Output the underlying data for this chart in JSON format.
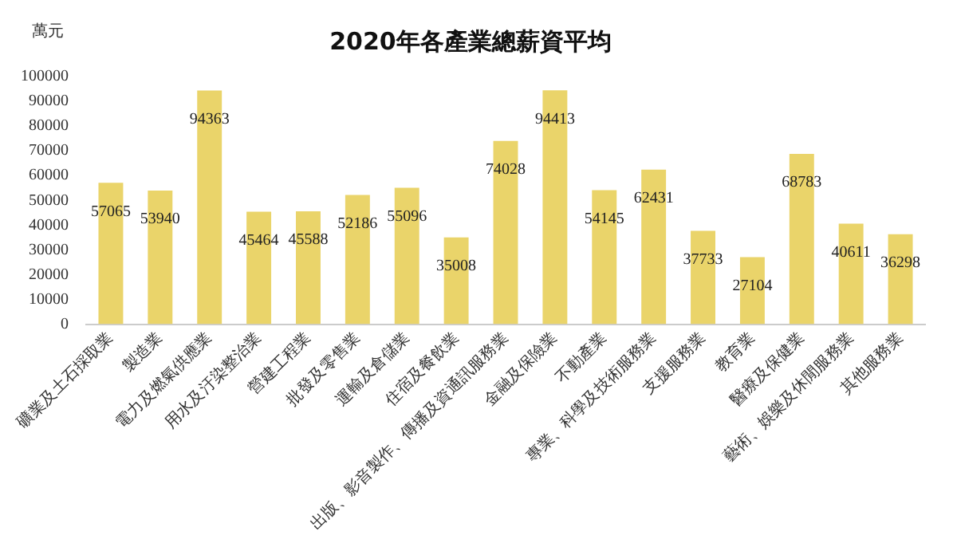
{
  "chart_data": {
    "type": "bar",
    "title": "2020年各產業總薪資平均",
    "ylabel": "萬元",
    "categories": [
      "礦業及土石採取業",
      "製造業",
      "電力及燃氣供應業",
      "用水及汙染整治業",
      "營建工程業",
      "批發及零售業",
      "運輸及倉儲業",
      "住宿及餐飲業",
      "出版、影音製作、傳播及資通訊服務業",
      "金融及保險業",
      "不動產業",
      "專業、科學及技術服務業",
      "支援服務業",
      "教育業",
      "醫療及保健業",
      "藝術、娛樂及休閒服務業",
      "其他服務業"
    ],
    "values": [
      57065,
      53940,
      94363,
      45464,
      45588,
      52186,
      55096,
      35008,
      74028,
      94413,
      54145,
      62431,
      37733,
      27104,
      68783,
      40611,
      36298
    ],
    "color": "#ead46a",
    "ylim": [
      0,
      100000
    ],
    "yticks": [
      0,
      10000,
      20000,
      30000,
      40000,
      50000,
      60000,
      70000,
      80000,
      90000,
      100000
    ],
    "grid": false,
    "data_labels": true
  }
}
